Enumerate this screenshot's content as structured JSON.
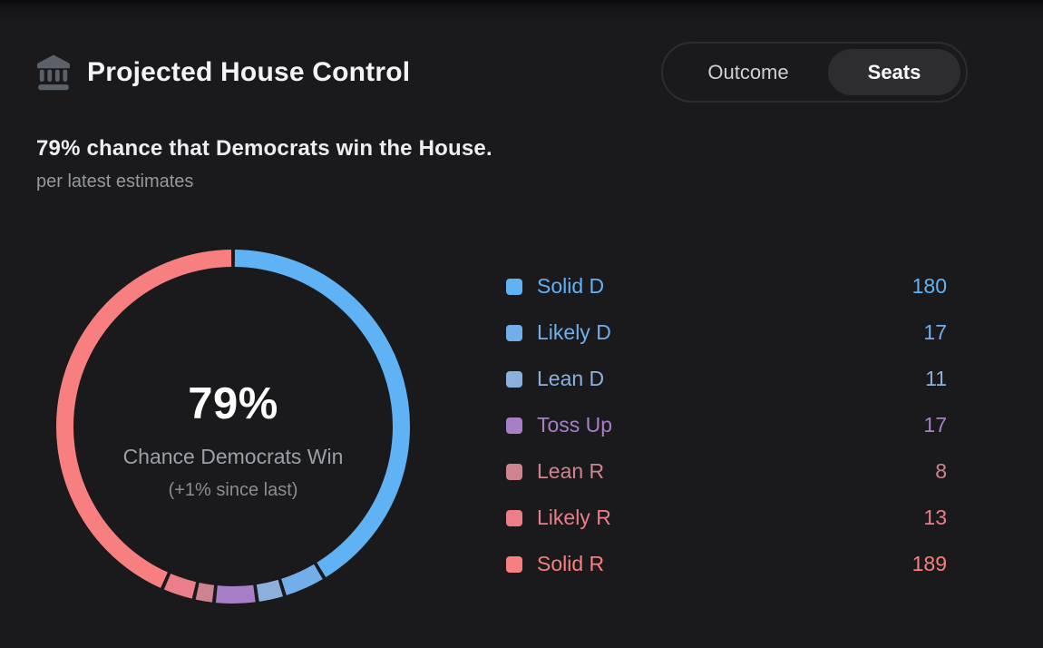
{
  "header": {
    "icon": "bank-icon",
    "title": "Projected House Control",
    "toggle": {
      "options": [
        "Outcome",
        "Seats"
      ],
      "selected": "Seats"
    }
  },
  "summary": {
    "headline": "79% chance that Democrats win the House.",
    "subtext": "per latest estimates"
  },
  "chart_data": {
    "type": "pie",
    "style": "donut",
    "direction": "clockwise",
    "start_angle_deg": 0,
    "gap_deg": 1.2,
    "legend_position": "right",
    "center_value": "79%",
    "center_label": "Chance Democrats Win",
    "center_sublabel": "(+1% since last)",
    "segments": [
      {
        "label": "Solid D",
        "value": 180,
        "color": "#5fb3f5"
      },
      {
        "label": "Likely D",
        "value": 17,
        "color": "#72afea"
      },
      {
        "label": "Lean D",
        "value": 11,
        "color": "#8cb0dc"
      },
      {
        "label": "Toss Up",
        "value": 17,
        "color": "#a77fc7"
      },
      {
        "label": "Lean R",
        "value": 8,
        "color": "#ce8490"
      },
      {
        "label": "Likely R",
        "value": 13,
        "color": "#eb7e88"
      },
      {
        "label": "Solid R",
        "value": 189,
        "color": "#f87f7f"
      }
    ]
  },
  "theme": {
    "card_background": "#1a1a1c",
    "text_primary": "#f3f4f5",
    "text_secondary": "#9aa0a6",
    "icon_color": "#5c6168",
    "toggle_border": "#2d2d31",
    "toggle_selected_bg": "#2d2d30"
  }
}
